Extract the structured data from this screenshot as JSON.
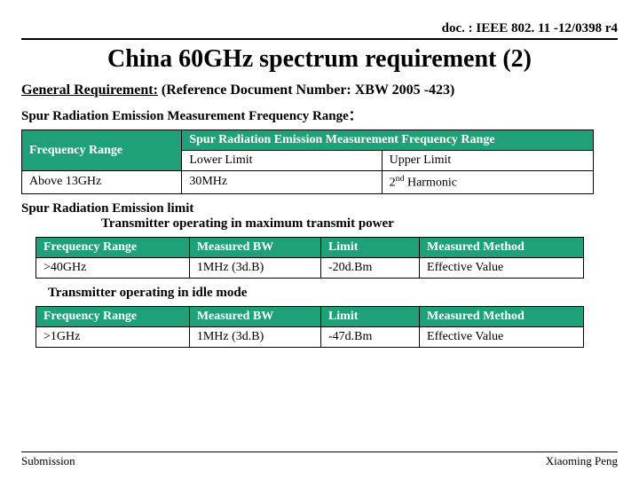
{
  "doc_id": "doc. : IEEE 802. 11 -12/0398 r4",
  "title": "China 60GHz spectrum requirement (2)",
  "general_req_label": "General Requirement:",
  "general_req_text": " (Reference Document Number: XBW 2005 -423)",
  "spur_range_label": "Spur Radiation Emission Measurement Frequency Range：",
  "table1": {
    "h_freq": "Frequency Range",
    "h_span": "Spur Radiation Emission Measurement Frequency Range",
    "h_lower": "Lower Limit",
    "h_upper": "Upper Limit",
    "r_freq": "Above 13GHz",
    "r_lower": "30MHz",
    "r_upper_pre": "2",
    "r_upper_sup": "nd",
    "r_upper_post": " Harmonic"
  },
  "emit_label": "Spur Radiation Emission limit",
  "emit_sub": "Transmitter operating in maximum transmit power",
  "table2": {
    "h1": "Frequency Range",
    "h2": "Measured BW",
    "h3": "Limit",
    "h4": "Measured Method",
    "r1": ">40GHz",
    "r2": "1MHz (3d.B)",
    "r3": "-20d.Bm",
    "r4": "Effective Value"
  },
  "idle_label": "Transmitter operating in idle mode",
  "table3": {
    "h1": "Frequency Range",
    "h2": "Measured BW",
    "h3": "Limit",
    "h4": "Measured Method",
    "r1": ">1GHz",
    "r2": "1MHz (3d.B)",
    "r3": "-47d.Bm",
    "r4": "Effective Value"
  },
  "footer_left": "Submission",
  "footer_right": "Xiaoming Peng",
  "colors": {
    "header_bg": "#1fa079",
    "text": "#000000",
    "bg": "#ffffff"
  }
}
